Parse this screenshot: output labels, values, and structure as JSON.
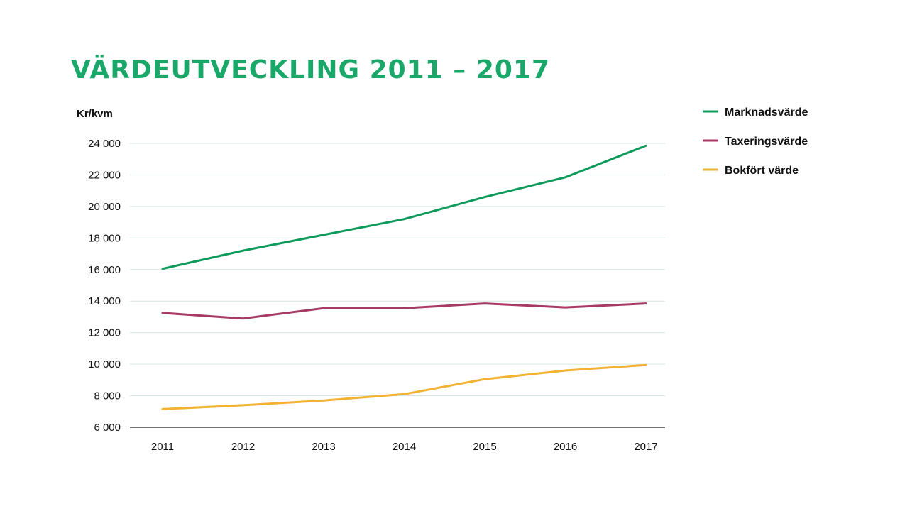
{
  "title": "VÄRDEUTVECKLING 2011 – 2017",
  "chart_data": {
    "type": "line",
    "title": "VÄRDEUTVECKLING 2011 – 2017",
    "ylabel": "Kr/kvm",
    "xlabel": "",
    "categories": [
      "2011",
      "2012",
      "2013",
      "2014",
      "2015",
      "2016",
      "2017"
    ],
    "ylim": [
      6000,
      24000
    ],
    "yticks": [
      6000,
      8000,
      10000,
      12000,
      14000,
      16000,
      18000,
      20000,
      22000,
      24000
    ],
    "ytick_labels": [
      "6 000",
      "8 000",
      "10 000",
      "12 000",
      "14 000",
      "16 000",
      "18 000",
      "20 000",
      "22 000",
      "24 000"
    ],
    "grid": true,
    "legend_position": "right",
    "series": [
      {
        "name": "Marknadsvärde",
        "color": "#0e9a5a",
        "values": [
          16050,
          17200,
          18200,
          19200,
          20600,
          21850,
          23850
        ]
      },
      {
        "name": "Taxeringsvärde",
        "color": "#a83a66",
        "values": [
          13250,
          12900,
          13550,
          13550,
          13850,
          13600,
          13850
        ]
      },
      {
        "name": "Bokfört värde",
        "color": "#f2b234",
        "values": [
          7150,
          7400,
          7700,
          8100,
          9050,
          9600,
          9950
        ]
      }
    ]
  }
}
